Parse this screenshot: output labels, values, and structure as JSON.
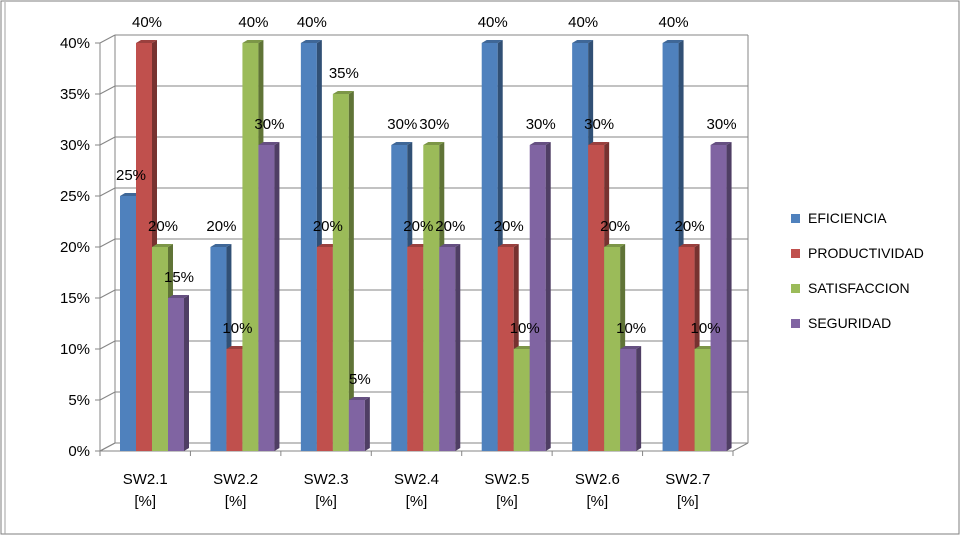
{
  "chart_data": {
    "type": "bar",
    "categories": [
      [
        "SW2.1",
        "[%]"
      ],
      [
        "SW2.2",
        "[%]"
      ],
      [
        "SW2.3",
        "[%]"
      ],
      [
        "SW2.4",
        "[%]"
      ],
      [
        "SW2.5",
        "[%]"
      ],
      [
        "SW2.6",
        "[%]"
      ],
      [
        "SW2.7",
        "[%]"
      ]
    ],
    "series": [
      {
        "name": "EFICIENCIA",
        "color": "#4F81BD",
        "values": [
          25,
          20,
          40,
          30,
          40,
          40,
          40
        ]
      },
      {
        "name": "PRODUCTIVIDAD",
        "color": "#C0504D",
        "values": [
          40,
          10,
          20,
          20,
          20,
          30,
          20
        ]
      },
      {
        "name": "SATISFACCION",
        "color": "#9BBB59",
        "values": [
          20,
          40,
          35,
          30,
          10,
          20,
          10
        ]
      },
      {
        "name": "SEGURIDAD",
        "color": "#8064A2",
        "values": [
          15,
          30,
          5,
          20,
          30,
          10,
          30
        ]
      }
    ],
    "ylim": [
      0,
      40
    ],
    "yticks": [
      "0%",
      "5%",
      "10%",
      "15%",
      "20%",
      "25%",
      "30%",
      "35%",
      "40%"
    ],
    "value_suffix": "%",
    "grid": true,
    "bar_style": "3d",
    "legend_position": "right",
    "title": "",
    "xlabel": "",
    "ylabel": ""
  }
}
